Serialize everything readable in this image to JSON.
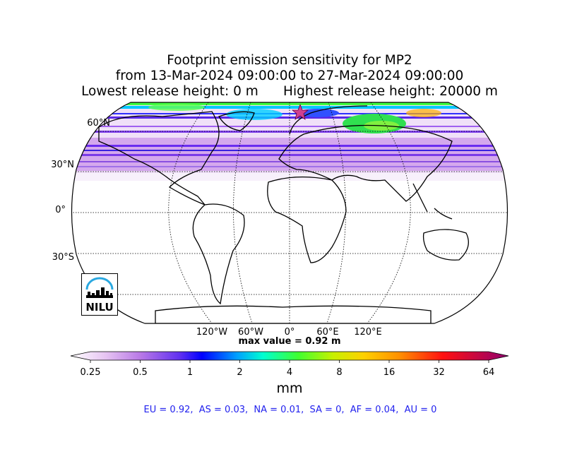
{
  "title": {
    "line1": "Footprint emission sensitivity for MP2",
    "line2": "from 13-Mar-2024 09:00:00 to 27-Mar-2024 09:00:00",
    "line3": "Lowest release height: 0 m      Highest release height: 20000 m"
  },
  "map": {
    "projection": "Robinson",
    "lat_labels": [
      "60°N",
      "30°N",
      "0°",
      "30°S"
    ],
    "lon_labels": [
      "120°W",
      "60°W",
      "0°",
      "60°E",
      "120°E"
    ],
    "max_value_text": "max value = 0.92 m",
    "logo_text": "NILU"
  },
  "colorbar": {
    "ticks": [
      "0.25",
      "0.5",
      "1",
      "2",
      "4",
      "8",
      "16",
      "32",
      "64"
    ],
    "unit": "mm",
    "colors": [
      "#ffffff",
      "#e0b8f0",
      "#b060e0",
      "#6030f0",
      "#0000ff",
      "#00a0ff",
      "#00ffc0",
      "#40ff40",
      "#c0ff00",
      "#ffd000",
      "#ff9000",
      "#ff2000",
      "#d00030",
      "#900070"
    ]
  },
  "stats": "EU = 0.92,  AS = 0.03,  NA = 0.01,  SA = 0,  AF = 0.04,  AU = 0"
}
